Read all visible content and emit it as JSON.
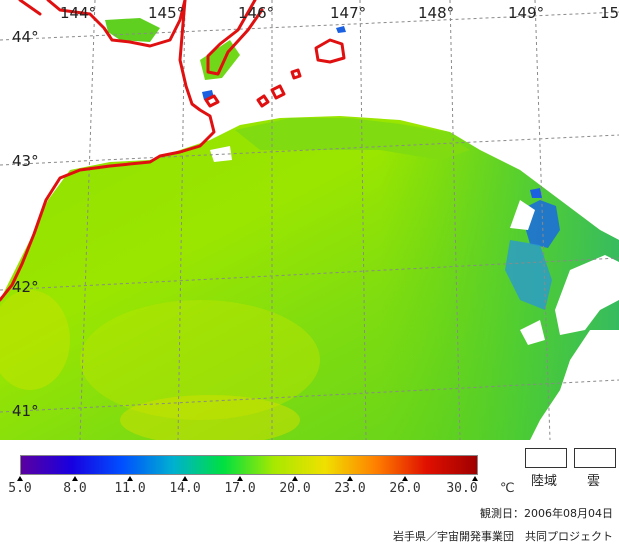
{
  "map": {
    "longitude_labels": [
      "144°",
      "145°",
      "146°",
      "147°",
      "148°",
      "149°",
      "15"
    ],
    "latitude_labels": [
      "44°",
      "43°",
      "42°",
      "41°"
    ]
  },
  "legend": {
    "ticks": [
      "5.0",
      "8.0",
      "11.0",
      "14.0",
      "17.0",
      "20.0",
      "23.0",
      "26.0",
      "30.0"
    ],
    "unit": "℃",
    "colors": [
      "#5a00a0",
      "#1800e0",
      "#0050ff",
      "#00b0d0",
      "#00e040",
      "#a8e800",
      "#f0e000",
      "#ff8000",
      "#e01000",
      "#a00000"
    ],
    "land_label": "陸域",
    "cloud_label": "雲"
  },
  "colors": {
    "coastline": "#e01010",
    "grid": "#8a8a8a",
    "cloud": "#ffffff"
  },
  "footer": {
    "observation_date": "観測日：2006年08月04日",
    "credit": "岩手県／宇宙開発事業団　共同プロジェクト"
  }
}
